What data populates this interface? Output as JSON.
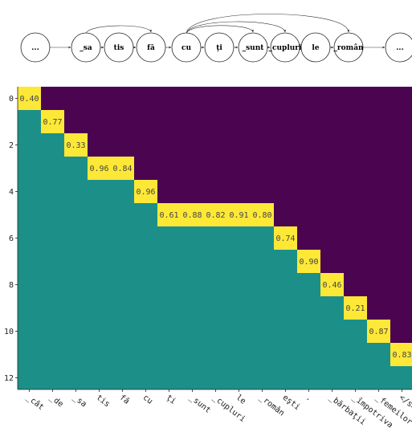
{
  "colors": {
    "background": "#4b0550",
    "lower": "#1c9088",
    "highlight": "#fde838"
  },
  "diagram": {
    "nodes": [
      "...",
      "_sa",
      "tis",
      "fă",
      "cu",
      "ţi",
      "_sunt",
      "_cupluri",
      "le",
      "_român",
      "..."
    ],
    "arcs": [
      [
        1,
        3
      ],
      [
        4,
        6
      ],
      [
        4,
        7
      ],
      [
        4,
        9
      ]
    ]
  },
  "chart_data": {
    "type": "heatmap",
    "row_ticks": [
      "0",
      "2",
      "4",
      "6",
      "8",
      "10",
      "12"
    ],
    "x_labels": [
      "_cât",
      "_de",
      "_sa",
      "tis",
      "fă",
      "cu",
      "ţi",
      "_sunt",
      "_cupluri",
      "le",
      "_român",
      "eşti",
      ".",
      "_bărbaţii",
      "_împotriva",
      "_femeilor",
      "</s>"
    ],
    "row_count": 13,
    "column_count": 17,
    "highlights": [
      {
        "row": 0,
        "cols": [
          0
        ],
        "values": [
          "0.40"
        ]
      },
      {
        "row": 1,
        "cols": [
          1
        ],
        "values": [
          "0.77"
        ]
      },
      {
        "row": 2,
        "cols": [
          2
        ],
        "values": [
          "0.33"
        ]
      },
      {
        "row": 3,
        "cols": [
          3,
          4
        ],
        "values": [
          "0.96",
          "0.84"
        ]
      },
      {
        "row": 4,
        "cols": [
          5
        ],
        "values": [
          "0.96"
        ]
      },
      {
        "row": 5,
        "cols": [
          6,
          7,
          8,
          9,
          10
        ],
        "values": [
          "0.61",
          "0.88",
          "0.82",
          "0.91",
          "0.80"
        ]
      },
      {
        "row": 6,
        "cols": [
          11
        ],
        "values": [
          "0.74"
        ]
      },
      {
        "row": 7,
        "cols": [
          12
        ],
        "values": [
          "0.90"
        ]
      },
      {
        "row": 8,
        "cols": [
          13
        ],
        "values": [
          "0.46"
        ]
      },
      {
        "row": 9,
        "cols": [
          14
        ],
        "values": [
          "0.21"
        ]
      },
      {
        "row": 10,
        "cols": [
          15
        ],
        "values": [
          "0.87"
        ]
      },
      {
        "row": 11,
        "cols": [
          16
        ],
        "values": [
          "0.83"
        ]
      }
    ]
  }
}
